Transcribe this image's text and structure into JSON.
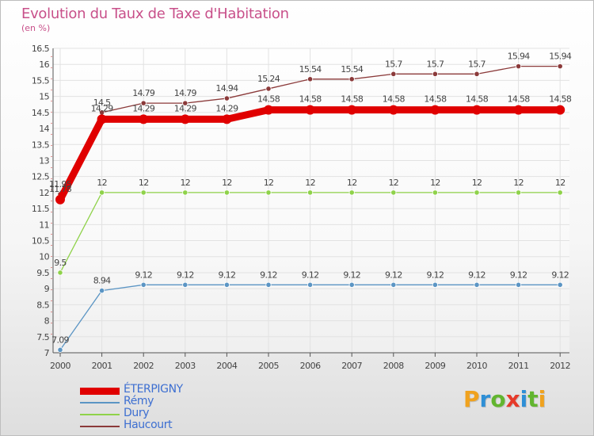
{
  "title": "Evolution du Taux de Taxe d'Habitation",
  "subtitle": "(en %)",
  "logo": {
    "text": "Proxiti",
    "letter_colors": [
      "#f0a21e",
      "#2e8fd6",
      "#62b52f",
      "#e63a2a",
      "#2e8fd6",
      "#62b52f",
      "#f0a21e"
    ]
  },
  "chart_data": {
    "type": "line",
    "title": "Evolution du Taux de Taxe d'Habitation",
    "ylabel": "(en %)",
    "xlabel": "",
    "categories": [
      "2000",
      "2001",
      "2002",
      "2003",
      "2004",
      "2005",
      "2006",
      "2007",
      "2008",
      "2009",
      "2010",
      "2011",
      "2012"
    ],
    "ylim": [
      7,
      16.5
    ],
    "yticks": [
      "7",
      "7.5",
      "8",
      "8.5",
      "9",
      "9.5",
      "10",
      "10.5",
      "11",
      "11.5",
      "12",
      "12.5",
      "13",
      "13.5",
      "14",
      "14.5",
      "15",
      "15.5",
      "16",
      "16.5"
    ],
    "grid": true,
    "legend_position": "bottom-left",
    "series": [
      {
        "name": "ÉTERPIGNY",
        "color": "#e00000",
        "values": [
          11.78,
          14.29,
          14.29,
          14.29,
          14.29,
          14.58,
          14.58,
          14.58,
          14.58,
          14.58,
          14.58,
          14.58,
          14.58
        ],
        "labels": [
          "11.78",
          "14.29",
          "14.29",
          "14.29",
          "14.29",
          "14.58",
          "14.58",
          "14.58",
          "14.58",
          "14.58",
          "14.58",
          "14.58",
          "14.58"
        ]
      },
      {
        "name": "Rémy",
        "color": "#5b95c4",
        "values": [
          7.09,
          8.94,
          9.12,
          9.12,
          9.12,
          9.12,
          9.12,
          9.12,
          9.12,
          9.12,
          9.12,
          9.12,
          9.12
        ],
        "labels": [
          "7.09",
          "8.94",
          "9.12",
          "9.12",
          "9.12",
          "9.12",
          "9.12",
          "9.12",
          "9.12",
          "9.12",
          "9.12",
          "9.12",
          "9.12"
        ]
      },
      {
        "name": "Dury",
        "color": "#8fd24a",
        "values": [
          9.5,
          12,
          12,
          12,
          12,
          12,
          12,
          12,
          12,
          12,
          12,
          12,
          12
        ],
        "labels": [
          "9.5",
          "12",
          "12",
          "12",
          "12",
          "12",
          "12",
          "12",
          "12",
          "12",
          "12",
          "12",
          "12"
        ]
      },
      {
        "name": "Haucourt",
        "color": "#8b3a3a",
        "values": [
          11.95,
          14.5,
          14.79,
          14.79,
          14.94,
          15.24,
          15.54,
          15.54,
          15.7,
          15.7,
          15.7,
          15.94,
          15.94
        ],
        "labels": [
          "11.95",
          "14.5",
          "14.79",
          "14.79",
          "14.94",
          "15.24",
          "15.54",
          "15.54",
          "15.7",
          "15.7",
          "15.7",
          "15.94",
          "15.94"
        ]
      }
    ]
  }
}
